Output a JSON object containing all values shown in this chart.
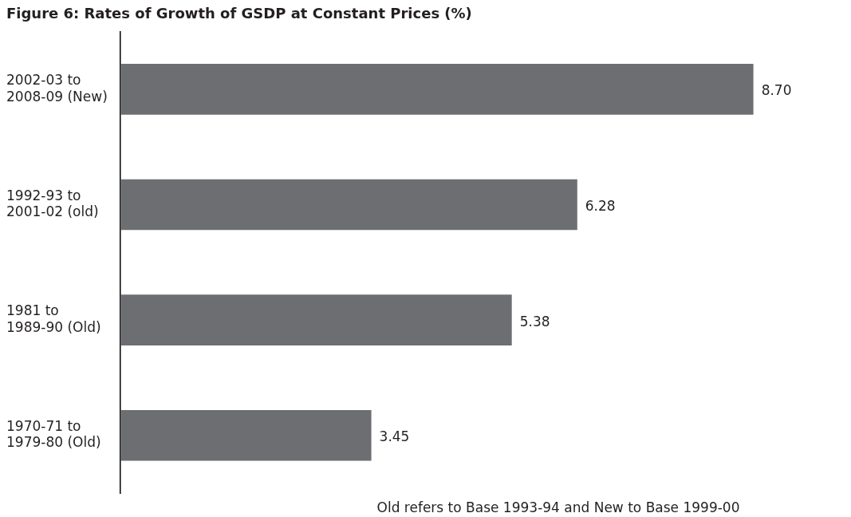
{
  "chart_data": {
    "type": "bar",
    "orientation": "horizontal",
    "title": "Figure 6: Rates of Growth of GSDP at Constant Prices (%)",
    "categories": [
      "2002-03 to 2008-09 (New)",
      "1992-93 to 2001-02 (old)",
      "1981 to 1989-90 (Old)",
      "1970-71 to 1979-80 (Old)"
    ],
    "values": [
      8.7,
      6.28,
      5.38,
      3.45
    ],
    "value_labels": [
      "8.70",
      "6.28",
      "5.38",
      "3.45"
    ],
    "color": "#6d6e71",
    "legend": false,
    "annotations": [
      "Old refers to Base 1993-94 and New to Base 1999-00"
    ]
  }
}
